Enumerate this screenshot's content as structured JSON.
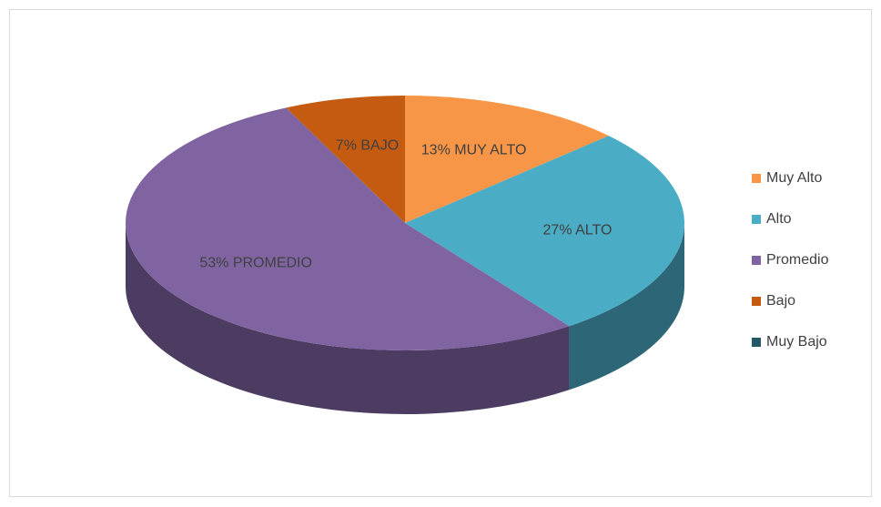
{
  "chart_data": {
    "type": "pie",
    "categories": [
      "Muy Alto",
      "Alto",
      "Promedio",
      "Bajo",
      "Muy Bajo"
    ],
    "values": [
      13,
      27,
      53,
      7,
      0
    ],
    "value_labels": [
      "13% MUY ALTO",
      "27% ALTO",
      "53% PROMEDIO",
      "7% BAJO",
      null
    ],
    "colors": [
      "#f79646",
      "#4bacc6",
      "#8064a2",
      "#c55a11",
      "#215967"
    ],
    "legend": "right"
  }
}
